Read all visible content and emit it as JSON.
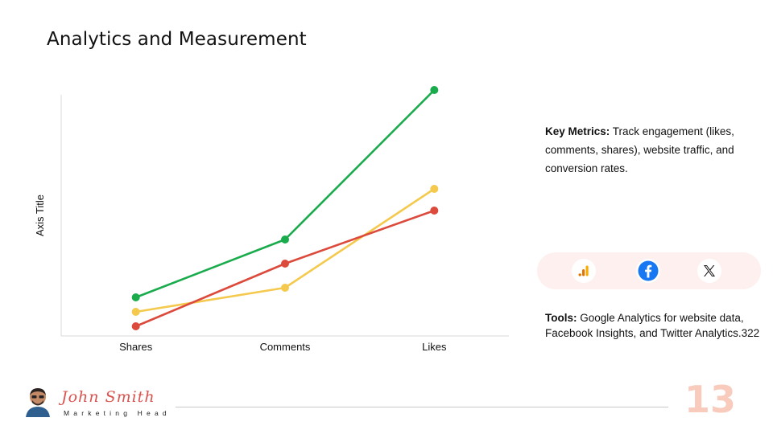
{
  "page": {
    "title": "Analytics and Measurement",
    "page_number": "13"
  },
  "chart_data": {
    "type": "line",
    "categories": [
      "Shares",
      "Comments",
      "Likes"
    ],
    "series": [
      {
        "color": "#1aab4d",
        "values": [
          1.6,
          4.0,
          10.2
        ]
      },
      {
        "color": "#f4c94d",
        "values": [
          1.0,
          2.0,
          6.1
        ]
      },
      {
        "color": "#dc4a3c",
        "values": [
          0.4,
          3.0,
          5.2
        ]
      }
    ],
    "title": "",
    "xlabel": "",
    "ylabel": "Axis Title",
    "ylim": [
      0,
      10
    ],
    "grid": false,
    "legend": "none"
  },
  "info": {
    "metrics_label": "Key Metrics:",
    "metrics_text": " Track engagement (likes, comments, shares), website traffic, and conversion rates.",
    "tools_label": "Tools:",
    "tools_text": " Google Analytics for website data, Facebook Insights, and Twitter Analytics.322"
  },
  "icons": [
    "google-analytics-icon",
    "facebook-icon",
    "x-icon"
  ],
  "brand": {
    "name": "John Smith",
    "role": "Marketing Head",
    "accent": "#d9534f"
  }
}
